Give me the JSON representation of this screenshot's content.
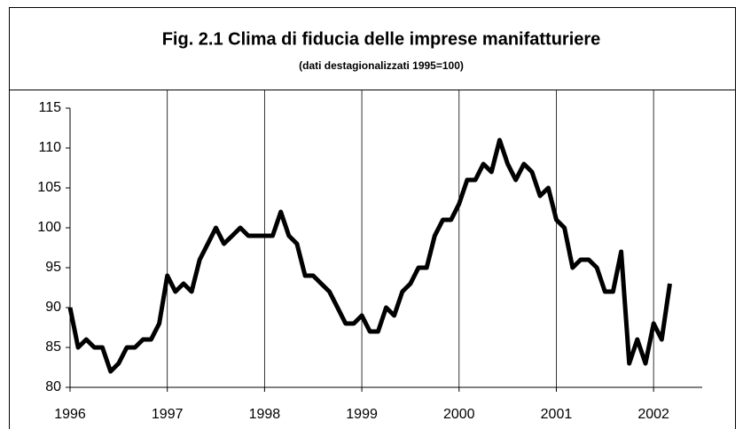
{
  "chart_data": {
    "type": "line",
    "title": "Fig. 2.1 Clima di fiducia delle imprese manifatturiere",
    "subtitle": "(dati destagionalizzati 1995=100)",
    "x": [
      1996.0,
      1996.083,
      1996.167,
      1996.25,
      1996.333,
      1996.417,
      1996.5,
      1996.583,
      1996.667,
      1996.75,
      1996.833,
      1996.917,
      1997.0,
      1997.083,
      1997.167,
      1997.25,
      1997.333,
      1997.417,
      1997.5,
      1997.583,
      1997.667,
      1997.75,
      1997.833,
      1997.917,
      1998.0,
      1998.083,
      1998.167,
      1998.25,
      1998.333,
      1998.417,
      1998.5,
      1998.583,
      1998.667,
      1998.75,
      1998.833,
      1998.917,
      1999.0,
      1999.083,
      1999.167,
      1999.25,
      1999.333,
      1999.417,
      1999.5,
      1999.583,
      1999.667,
      1999.75,
      1999.833,
      1999.917,
      2000.0,
      2000.083,
      2000.167,
      2000.25,
      2000.333,
      2000.417,
      2000.5,
      2000.583,
      2000.667,
      2000.75,
      2000.833,
      2000.917,
      2001.0,
      2001.083,
      2001.167,
      2001.25,
      2001.333,
      2001.417,
      2001.5,
      2001.583,
      2001.667,
      2001.75,
      2001.833,
      2001.917,
      2002.0,
      2002.083,
      2002.167
    ],
    "series": [
      {
        "name": "Clima di fiducia",
        "color": "#000000",
        "values": [
          90,
          85,
          86,
          85,
          85,
          82,
          83,
          85,
          85,
          86,
          86,
          88,
          94,
          92,
          93,
          92,
          96,
          98,
          100,
          98,
          99,
          100,
          99,
          99,
          99,
          99,
          102,
          99,
          98,
          94,
          94,
          93,
          92,
          90,
          88,
          88,
          89,
          87,
          87,
          90,
          89,
          92,
          93,
          95,
          95,
          99,
          101,
          101,
          103,
          106,
          106,
          108,
          107,
          111,
          108,
          106,
          108,
          107,
          104,
          105,
          101,
          100,
          95,
          96,
          96,
          95,
          92,
          92,
          97,
          83,
          86,
          83,
          88,
          86,
          93
        ]
      }
    ],
    "xlim": [
      1996,
      2002.5
    ],
    "xticks": [
      1996,
      1997,
      1998,
      1999,
      2000,
      2001,
      2002
    ],
    "ylim": [
      80,
      115
    ],
    "yticks": [
      80,
      85,
      90,
      95,
      100,
      105,
      110,
      115
    ],
    "grid": "x"
  }
}
